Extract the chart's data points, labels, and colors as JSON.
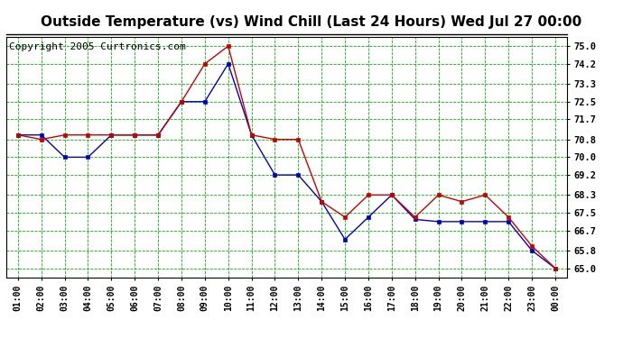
{
  "title": "Outside Temperature (vs) Wind Chill (Last 24 Hours) Wed Jul 27 00:00",
  "copyright": "Copyright 2005 Curtronics.com",
  "x_labels": [
    "01:00",
    "02:00",
    "03:00",
    "04:00",
    "05:00",
    "06:00",
    "07:00",
    "08:00",
    "09:00",
    "10:00",
    "11:00",
    "12:00",
    "13:00",
    "14:00",
    "15:00",
    "16:00",
    "17:00",
    "18:00",
    "19:00",
    "20:00",
    "21:00",
    "22:00",
    "23:00",
    "00:00"
  ],
  "blue_y": [
    71.0,
    71.0,
    70.0,
    70.0,
    71.0,
    71.0,
    71.0,
    72.5,
    72.5,
    74.2,
    71.0,
    69.2,
    69.2,
    68.0,
    66.3,
    67.3,
    68.3,
    67.2,
    67.1,
    67.1,
    67.1,
    67.1,
    65.8,
    65.0
  ],
  "red_y": [
    71.0,
    70.8,
    71.0,
    71.0,
    71.0,
    71.0,
    71.0,
    72.5,
    74.2,
    75.0,
    71.0,
    70.8,
    70.8,
    68.0,
    67.3,
    68.3,
    68.3,
    67.3,
    68.3,
    68.0,
    68.3,
    67.3,
    66.0,
    65.0
  ],
  "y_ticks": [
    65.0,
    65.8,
    66.7,
    67.5,
    68.3,
    69.2,
    70.0,
    70.8,
    71.7,
    72.5,
    73.3,
    74.2,
    75.0
  ],
  "ylim": [
    64.6,
    75.4
  ],
  "blue_color": "#0000cc",
  "red_color": "#cc0000",
  "bg_color": "#ffffff",
  "grid_color": "#00bb00",
  "title_fontsize": 11,
  "copyright_fontsize": 8
}
